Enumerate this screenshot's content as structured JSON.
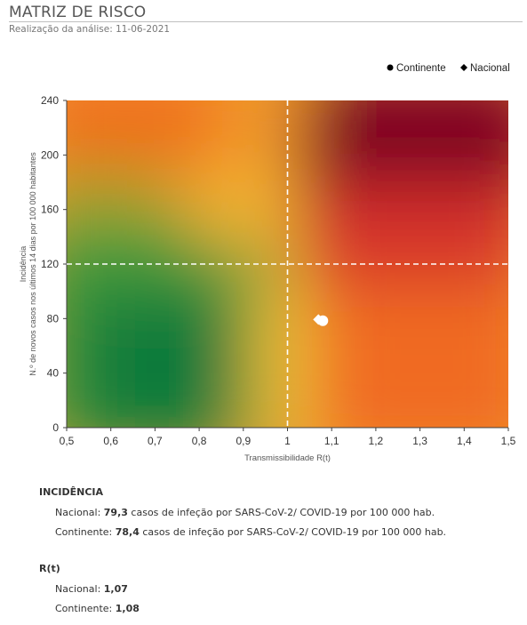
{
  "header": {
    "title": "MATRIZ DE RISCO",
    "subtitle": "Realização da análise: 11-06-2021"
  },
  "chart_data": {
    "type": "scatter",
    "xlabel": "Transmissibilidade R(t)",
    "ylabel_line1": "Incidência",
    "ylabel_line2": "N.º de novos casos nos últimos 14 dias por 100 000 habitantes",
    "xlim": [
      0.5,
      1.5
    ],
    "ylim": [
      0,
      240
    ],
    "x_ticks": [
      "0,5",
      "0,6",
      "0,7",
      "0,8",
      "0,9",
      "1",
      "1,1",
      "1,2",
      "1,3",
      "1,4",
      "1,5"
    ],
    "y_ticks": [
      "0",
      "40",
      "80",
      "120",
      "160",
      "200",
      "240"
    ],
    "x_tick_values": [
      0.5,
      0.6,
      0.7,
      0.8,
      0.9,
      1.0,
      1.1,
      1.2,
      1.3,
      1.4,
      1.5
    ],
    "y_tick_values": [
      0,
      40,
      80,
      120,
      160,
      200,
      240
    ],
    "thresholds": {
      "x": 1.0,
      "y": 120
    },
    "legend_position": "top-right",
    "series": [
      {
        "name": "Continente",
        "marker": "circle",
        "color": "#ffffff",
        "x": 1.08,
        "y": 78.4
      },
      {
        "name": "Nacional",
        "marker": "diamond",
        "color": "#ffffff",
        "x": 1.07,
        "y": 79.3
      }
    ]
  },
  "legend": {
    "continente": "Continente",
    "nacional": "Nacional"
  },
  "incidencia": {
    "title": "INCIDÊNCIA",
    "nacional_label": "Nacional: ",
    "nacional_value": "79,3",
    "nacional_text": " casos de infeção por SARS-CoV-2/ COVID-19 por 100 000 hab.",
    "continente_label": "Continente: ",
    "continente_value": "78,4",
    "continente_text": " casos de infeção por SARS-CoV-2/ COVID-19 por 100 000 hab."
  },
  "rt": {
    "title": "R(t)",
    "nacional_label": "Nacional: ",
    "nacional_value": "1,07",
    "continente_label": "Continente: ",
    "continente_value": "1,08"
  }
}
